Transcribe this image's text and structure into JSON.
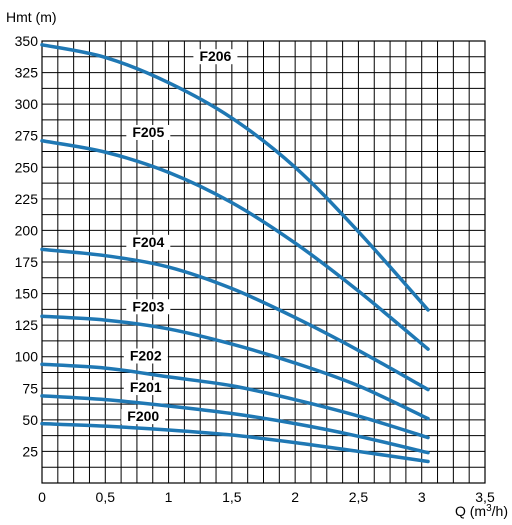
{
  "chart_data": {
    "type": "line",
    "ylabel": "Hmt (m)",
    "xlabel": "Q (m³/h)",
    "xlim": [
      0,
      3.5
    ],
    "ylim": [
      0,
      350
    ],
    "grid": true,
    "x_ticks": [
      {
        "value": 0,
        "label": "0"
      },
      {
        "value": 0.5,
        "label": "0,5"
      },
      {
        "value": 1,
        "label": "1"
      },
      {
        "value": 1.5,
        "label": "1,5"
      },
      {
        "value": 2,
        "label": "2"
      },
      {
        "value": 2.5,
        "label": "2,5"
      },
      {
        "value": 3,
        "label": "3"
      },
      {
        "value": 3.5,
        "label": "3,5"
      }
    ],
    "y_ticks": [
      {
        "value": 25,
        "label": "25"
      },
      {
        "value": 50,
        "label": "50"
      },
      {
        "value": 75,
        "label": "75"
      },
      {
        "value": 100,
        "label": "100"
      },
      {
        "value": 125,
        "label": "125"
      },
      {
        "value": 150,
        "label": "150"
      },
      {
        "value": 175,
        "label": "175"
      },
      {
        "value": 200,
        "label": "200"
      },
      {
        "value": 225,
        "label": "225"
      },
      {
        "value": 250,
        "label": "250"
      },
      {
        "value": 275,
        "label": "275"
      },
      {
        "value": 300,
        "label": "300"
      },
      {
        "value": 325,
        "label": "325"
      },
      {
        "value": 350,
        "label": "350"
      }
    ],
    "series_color": "#1f78b4",
    "series": [
      {
        "name": "F200",
        "label_at": [
          0.8,
          49
        ],
        "x": [
          0,
          0.5,
          1,
          1.5,
          2,
          2.5,
          3.05
        ],
        "values": [
          47,
          45,
          42,
          38,
          32,
          25,
          17
        ]
      },
      {
        "name": "F201",
        "label_at": [
          0.82,
          72
        ],
        "x": [
          0,
          0.5,
          1,
          1.5,
          2,
          2.5,
          3.05
        ],
        "values": [
          69,
          66,
          61,
          55,
          47,
          37,
          24
        ]
      },
      {
        "name": "F202",
        "label_at": [
          0.82,
          97
        ],
        "x": [
          0,
          0.5,
          1,
          1.5,
          2,
          2.5,
          3.05
        ],
        "values": [
          94,
          91,
          84,
          77,
          66,
          53,
          36
        ]
      },
      {
        "name": "F203",
        "label_at": [
          0.84,
          136
        ],
        "x": [
          0,
          0.5,
          1,
          1.5,
          2,
          2.5,
          3.05
        ],
        "values": [
          132,
          129,
          122,
          110,
          95,
          77,
          51
        ]
      },
      {
        "name": "F204",
        "label_at": [
          0.84,
          187
        ],
        "x": [
          0,
          0.5,
          1,
          1.5,
          2,
          2.5,
          3.05
        ],
        "values": [
          185,
          180,
          171,
          154,
          131,
          105,
          74
        ]
      },
      {
        "name": "F205",
        "label_at": [
          0.84,
          274
        ],
        "x": [
          0,
          0.5,
          1,
          1.5,
          2,
          2.5,
          3.05
        ],
        "values": [
          271,
          262,
          246,
          222,
          190,
          152,
          106
        ]
      },
      {
        "name": "F206",
        "label_at": [
          1.37,
          334
        ],
        "x": [
          0,
          0.5,
          1,
          1.5,
          2,
          2.5,
          3.05
        ],
        "values": [
          347,
          337,
          317,
          289,
          250,
          199,
          137
        ]
      }
    ]
  }
}
